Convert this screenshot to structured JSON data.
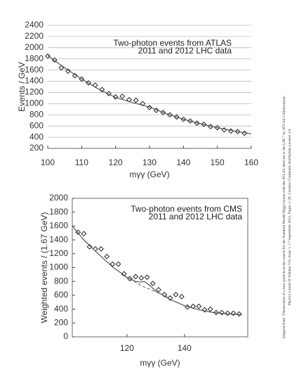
{
  "credit": [
    "Adapted from \"Observation of a new particle in the search for the Standard Model Higgs boson with the ATLAS detector at the LHC\" by ATLAS Collaboration,",
    "Physics Letters B Volume 716, Issue 1, 17 September 2012, Pages 1–29, Creative Commons Attribution License 3.0"
  ],
  "chart_data": [
    {
      "type": "scatter",
      "annotation": [
        "Two-photon events from ATLAS",
        "2011 and 2012 LHC data"
      ],
      "x_label": "mγγ (GeV)",
      "y_label": "Events / GeV",
      "xlim": [
        100,
        160
      ],
      "ylim": [
        200,
        2400
      ],
      "xticks": [
        100,
        110,
        120,
        130,
        140,
        150,
        160
      ],
      "yticks": [
        200,
        400,
        600,
        800,
        1000,
        1200,
        1400,
        1600,
        1800,
        2000,
        2200,
        2400
      ],
      "grid": true,
      "frame": false,
      "series": [
        {
          "color": "#222222",
          "marker": "diamond",
          "x": [
            100,
            102,
            104,
            106,
            108,
            110,
            112,
            114,
            116,
            118,
            120,
            122,
            124,
            126,
            128,
            130,
            132,
            134,
            136,
            138,
            140,
            142,
            144,
            146,
            148,
            150,
            152,
            154,
            156,
            158
          ],
          "values": [
            1850,
            1780,
            1640,
            1580,
            1500,
            1440,
            1370,
            1330,
            1250,
            1180,
            1120,
            1130,
            1070,
            1060,
            1000,
            930,
            880,
            840,
            800,
            760,
            720,
            690,
            650,
            630,
            590,
            570,
            530,
            510,
            500,
            470
          ]
        },
        {
          "color": "#555555",
          "line": "solid",
          "x": [
            100,
            105,
            110,
            115,
            120,
            125,
            130,
            135,
            140,
            145,
            150,
            155,
            160
          ],
          "values": [
            1860,
            1640,
            1440,
            1260,
            1110,
            1020,
            940,
            820,
            720,
            640,
            570,
            510,
            460
          ]
        }
      ]
    },
    {
      "type": "scatter",
      "annotation": [
        "Two-photon events from CMS",
        "2011 and 2012 LHC data"
      ],
      "x_label": "mγγ (GeV)",
      "y_label": "Weighted events / (1.67 GeV)",
      "xlim": [
        101,
        162
      ],
      "ylim": [
        0,
        2000
      ],
      "xticks": [
        120,
        140
      ],
      "yticks": [
        0,
        200,
        400,
        600,
        800,
        1000,
        1200,
        1400,
        1600,
        1800,
        2000
      ],
      "grid": false,
      "frame": true,
      "series": [
        {
          "color": "#222222",
          "marker": "diamond",
          "x": [
            103,
            105,
            107,
            109,
            111,
            113,
            115,
            117,
            119,
            121,
            123,
            125,
            127,
            129,
            131,
            133,
            135,
            137,
            139,
            141,
            143,
            145,
            147,
            149,
            151,
            153,
            155,
            157,
            159
          ],
          "values": [
            1510,
            1490,
            1300,
            1270,
            1270,
            1160,
            1050,
            1050,
            910,
            840,
            870,
            850,
            860,
            770,
            680,
            610,
            560,
            610,
            580,
            430,
            440,
            440,
            390,
            400,
            350,
            350,
            340,
            340,
            330
          ]
        },
        {
          "color": "#555555",
          "line": "solid",
          "x": [
            101,
            105,
            110,
            115,
            120,
            123,
            125,
            126,
            128,
            130,
            135,
            140,
            145,
            150,
            155,
            160
          ],
          "values": [
            1600,
            1400,
            1200,
            1010,
            860,
            800,
            790,
            800,
            740,
            660,
            540,
            450,
            390,
            350,
            330,
            320
          ]
        },
        {
          "color": "#777777",
          "line": "dashed",
          "x": [
            118,
            122,
            126,
            130,
            134
          ],
          "values": [
            900,
            810,
            720,
            650,
            580
          ]
        }
      ]
    }
  ]
}
